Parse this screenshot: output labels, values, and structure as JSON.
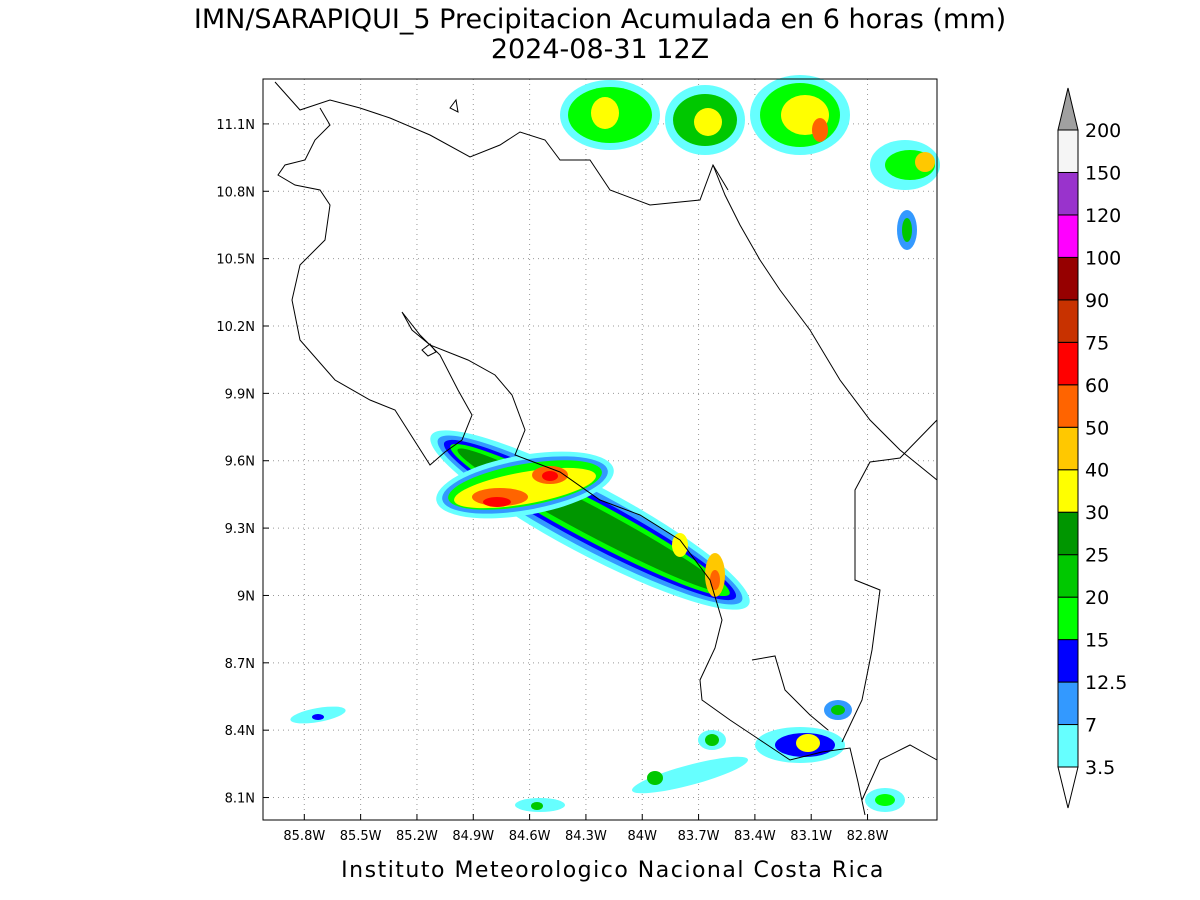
{
  "map": {
    "title": "IMN/SARAPIQUI_5 Precipitacion Acumulada en 6 horas (mm)",
    "subtitle": "2024-08-31 12Z",
    "footer": "Instituto Meteorologico Nacional Costa Rica",
    "xlim": [
      -86.02,
      -82.43
    ],
    "ylim": [
      8.0,
      11.3
    ],
    "xticks": [
      {
        "value": -85.8,
        "label": "85.8W"
      },
      {
        "value": -85.5,
        "label": "85.5W"
      },
      {
        "value": -85.2,
        "label": "85.2W"
      },
      {
        "value": -84.9,
        "label": "84.9W"
      },
      {
        "value": -84.6,
        "label": "84.6W"
      },
      {
        "value": -84.3,
        "label": "84.3W"
      },
      {
        "value": -84.0,
        "label": "84W"
      },
      {
        "value": -83.7,
        "label": "83.7W"
      },
      {
        "value": -83.4,
        "label": "83.4W"
      },
      {
        "value": -83.1,
        "label": "83.1W"
      },
      {
        "value": -82.8,
        "label": "82.8W"
      }
    ],
    "yticks": [
      {
        "value": 8.1,
        "label": "8.1N"
      },
      {
        "value": 8.4,
        "label": "8.4N"
      },
      {
        "value": 8.7,
        "label": "8.7N"
      },
      {
        "value": 9.0,
        "label": "9N"
      },
      {
        "value": 9.3,
        "label": "9.3N"
      },
      {
        "value": 9.6,
        "label": "9.6N"
      },
      {
        "value": 9.9,
        "label": "9.9N"
      },
      {
        "value": 10.2,
        "label": "10.2N"
      },
      {
        "value": 10.5,
        "label": "10.5N"
      },
      {
        "value": 10.8,
        "label": "10.8N"
      },
      {
        "value": 11.1,
        "label": "11.1N"
      }
    ],
    "grid": true,
    "colorbar": {
      "levels": [
        3.5,
        7,
        12.5,
        15,
        20,
        25,
        30,
        40,
        50,
        60,
        75,
        90,
        100,
        120,
        150,
        200
      ],
      "colors": [
        "#66ffff",
        "#3399ff",
        "#0000ff",
        "#00ff00",
        "#00c800",
        "#009600",
        "#ffff00",
        "#ffc800",
        "#ff6400",
        "#ff0000",
        "#c83200",
        "#960000",
        "#ff00ff",
        "#9933cc",
        "#f5f5f5"
      ],
      "under_color": "#ffffff",
      "over_color": "#a0a0a0"
    }
  }
}
